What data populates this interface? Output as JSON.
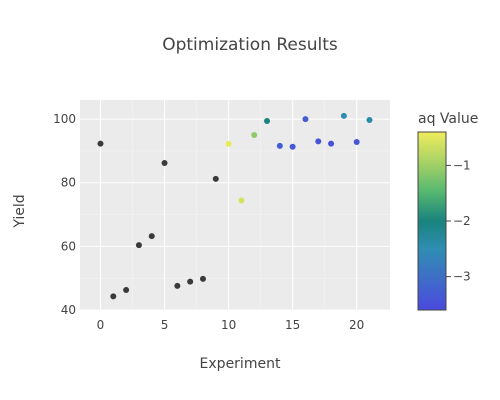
{
  "chart_data": {
    "type": "scatter",
    "title": "Optimization Results",
    "xlabel": "Experiment",
    "ylabel": "Yield",
    "xlim": [
      -1.6,
      22.6
    ],
    "ylim": [
      40,
      106
    ],
    "xticks": [
      0,
      5,
      10,
      15,
      20
    ],
    "yticks": [
      40,
      60,
      80,
      100
    ],
    "grid": true,
    "background_color": "#ebebeb",
    "colorbar": {
      "title": "aq Value",
      "range": [
        -3.6,
        -0.4
      ],
      "ticks": [
        -1,
        -2,
        -3
      ],
      "tick_labels": [
        "−1",
        "−2",
        "−3"
      ],
      "colorscale": [
        "#4a4ae0",
        "#3f6cc8",
        "#2f8db2",
        "#19837e",
        "#58b96f",
        "#a8d266",
        "#efec5c"
      ]
    },
    "neutral_color": "#3a3a3a",
    "points": [
      {
        "x": 0,
        "y": 92.3,
        "aq": null
      },
      {
        "x": 1,
        "y": 44.3,
        "aq": null
      },
      {
        "x": 2,
        "y": 46.3,
        "aq": null
      },
      {
        "x": 3,
        "y": 60.4,
        "aq": null
      },
      {
        "x": 4,
        "y": 63.2,
        "aq": null
      },
      {
        "x": 5,
        "y": 86.2,
        "aq": null
      },
      {
        "x": 6,
        "y": 47.6,
        "aq": null
      },
      {
        "x": 7,
        "y": 48.9,
        "aq": null
      },
      {
        "x": 8,
        "y": 49.8,
        "aq": null
      },
      {
        "x": 9,
        "y": 81.2,
        "aq": null
      },
      {
        "x": 10,
        "y": 92.2,
        "aq": -0.45
      },
      {
        "x": 11,
        "y": 74.4,
        "aq": -0.6
      },
      {
        "x": 12,
        "y": 95.0,
        "aq": -1.1
      },
      {
        "x": 13,
        "y": 99.4,
        "aq": -2.0
      },
      {
        "x": 14,
        "y": 91.6,
        "aq": -3.35
      },
      {
        "x": 15,
        "y": 91.3,
        "aq": -3.4
      },
      {
        "x": 16,
        "y": 100.0,
        "aq": -3.3
      },
      {
        "x": 17,
        "y": 93.0,
        "aq": -3.45
      },
      {
        "x": 18,
        "y": 92.3,
        "aq": -3.5
      },
      {
        "x": 19,
        "y": 101.0,
        "aq": -2.5
      },
      {
        "x": 20,
        "y": 92.8,
        "aq": -3.4
      },
      {
        "x": 21,
        "y": 99.7,
        "aq": -2.4
      }
    ]
  }
}
